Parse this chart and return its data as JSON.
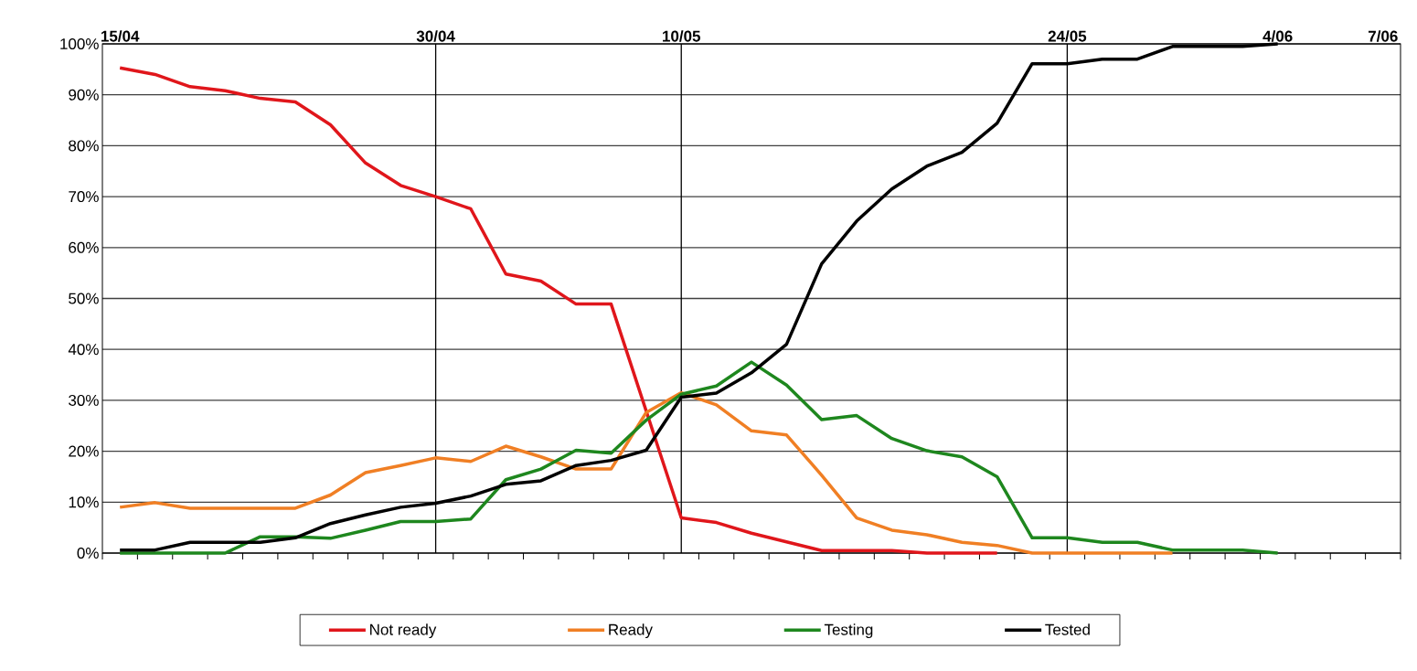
{
  "chart_data": {
    "type": "line",
    "categories": [
      "15/04",
      null,
      null,
      null,
      null,
      null,
      null,
      null,
      null,
      "30/04",
      null,
      null,
      null,
      null,
      null,
      null,
      "10/05",
      null,
      null,
      null,
      null,
      null,
      null,
      null,
      null,
      null,
      null,
      "24/05",
      null,
      null,
      null,
      null,
      null,
      "4/06",
      null,
      null,
      "7/06"
    ],
    "series": [
      {
        "name": "Not ready",
        "color": "#e0161b",
        "values": [
          95.3,
          94,
          91.6,
          90.8,
          89.3,
          88.6,
          84.1,
          76.6,
          72.2,
          70,
          67.6,
          54.8,
          53.4,
          48.9,
          48.9,
          27.9,
          6.9,
          6,
          3.9,
          2.2,
          0.5,
          0.5,
          0.5,
          0,
          0,
          0,
          null,
          null,
          null,
          null,
          null,
          null,
          null,
          null,
          null,
          null,
          null
        ]
      },
      {
        "name": "Ready",
        "color": "#f07f24",
        "values": [
          9,
          9.9,
          8.8,
          8.8,
          8.8,
          8.8,
          11.4,
          15.8,
          17.2,
          18.7,
          18,
          21,
          18.9,
          16.5,
          16.5,
          27.6,
          31.5,
          29.1,
          24,
          23.2,
          15.3,
          6.9,
          4.5,
          3.6,
          2.1,
          1.5,
          0,
          0,
          0,
          0,
          0,
          null,
          null,
          null,
          null,
          null,
          null
        ]
      },
      {
        "name": "Testing",
        "color": "#1e871e",
        "values": [
          0,
          0,
          0,
          0,
          3.2,
          3.2,
          2.9,
          4.5,
          6.2,
          6.2,
          6.7,
          14.4,
          16.5,
          20.2,
          19.6,
          26.1,
          31.2,
          32.8,
          37.5,
          33,
          26.2,
          27,
          22.5,
          20.1,
          18.9,
          15,
          3,
          3,
          2.1,
          2.1,
          0.6,
          0.6,
          0.6,
          0,
          null,
          null,
          null
        ]
      },
      {
        "name": "Tested",
        "color": "#000000",
        "values": [
          0.6,
          0.6,
          2.1,
          2.1,
          2.1,
          3,
          5.8,
          7.5,
          9,
          9.8,
          11.2,
          13.5,
          14.2,
          17.2,
          18.2,
          20.2,
          30.6,
          31.4,
          35.4,
          41,
          56.8,
          65.2,
          71.5,
          76,
          78.7,
          84.4,
          96.1,
          96.1,
          97,
          97,
          99.5,
          99.5,
          99.5,
          100,
          null,
          null,
          null
        ]
      }
    ],
    "ylim": [
      0,
      100
    ],
    "yticks": [
      {
        "value": 0,
        "label": "0%"
      },
      {
        "value": 10,
        "label": "10%"
      },
      {
        "value": 20,
        "label": "20%"
      },
      {
        "value": 30,
        "label": "30%"
      },
      {
        "value": 40,
        "label": "40%"
      },
      {
        "value": 50,
        "label": "50%"
      },
      {
        "value": 60,
        "label": "60%"
      },
      {
        "value": 70,
        "label": "70%"
      },
      {
        "value": 80,
        "label": "80%"
      },
      {
        "value": 90,
        "label": "90%"
      },
      {
        "value": 100,
        "label": "100%"
      }
    ],
    "ref_lines": [
      {
        "axis": "x",
        "value": "30/04"
      },
      {
        "axis": "x",
        "value": "10/05"
      },
      {
        "axis": "x",
        "value": "24/05"
      }
    ],
    "grid": "y",
    "legend": "bottom"
  }
}
